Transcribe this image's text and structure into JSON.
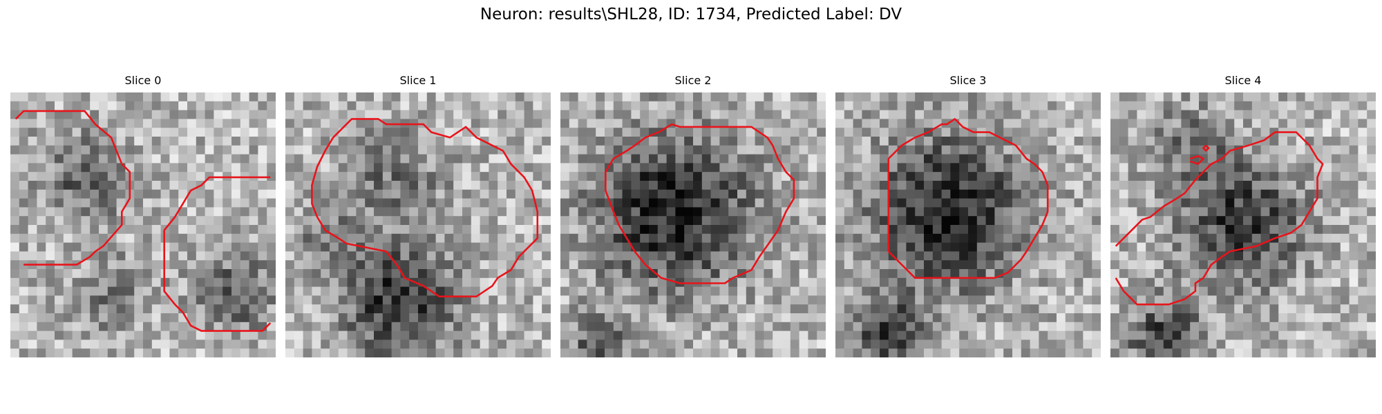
{
  "figure": {
    "title": "Neuron: results\\SHL28, ID: 1734, Predicted Label: DV"
  },
  "contour_color": "#e8141b",
  "panels": [
    {
      "title": "Slice 0",
      "seed": 11,
      "blobs": [
        [
          0.28,
          0.32,
          0.36,
          0.55
        ],
        [
          0.85,
          0.75,
          0.32,
          0.6
        ],
        [
          0.38,
          0.78,
          0.3,
          0.45
        ]
      ],
      "contours": [
        [
          [
            0.02,
            0.1
          ],
          [
            0.05,
            0.07
          ],
          [
            0.28,
            0.07
          ],
          [
            0.32,
            0.12
          ],
          [
            0.38,
            0.17
          ],
          [
            0.42,
            0.27
          ],
          [
            0.45,
            0.3
          ],
          [
            0.45,
            0.4
          ],
          [
            0.42,
            0.45
          ],
          [
            0.42,
            0.5
          ],
          [
            0.35,
            0.58
          ],
          [
            0.32,
            0.6
          ],
          [
            0.3,
            0.62
          ],
          [
            0.25,
            0.65
          ],
          [
            0.05,
            0.65
          ]
        ],
        [
          [
            0.98,
            0.32
          ],
          [
            0.75,
            0.32
          ],
          [
            0.72,
            0.35
          ],
          [
            0.68,
            0.37
          ],
          [
            0.65,
            0.42
          ],
          [
            0.62,
            0.47
          ],
          [
            0.58,
            0.52
          ],
          [
            0.58,
            0.75
          ],
          [
            0.62,
            0.8
          ],
          [
            0.65,
            0.83
          ],
          [
            0.68,
            0.88
          ],
          [
            0.72,
            0.9
          ],
          [
            0.95,
            0.9
          ],
          [
            0.98,
            0.87
          ]
        ]
      ]
    },
    {
      "title": "Slice 1",
      "seed": 23,
      "blobs": [
        [
          0.42,
          0.78,
          0.45,
          0.9
        ],
        [
          0.42,
          0.32,
          0.38,
          0.45
        ],
        [
          0.15,
          0.55,
          0.25,
          0.35
        ]
      ],
      "contours": [
        [
          [
            0.18,
            0.17
          ],
          [
            0.25,
            0.1
          ],
          [
            0.35,
            0.1
          ],
          [
            0.38,
            0.12
          ],
          [
            0.52,
            0.12
          ],
          [
            0.55,
            0.15
          ],
          [
            0.62,
            0.17
          ],
          [
            0.65,
            0.15
          ],
          [
            0.68,
            0.13
          ],
          [
            0.72,
            0.17
          ],
          [
            0.78,
            0.2
          ],
          [
            0.82,
            0.22
          ],
          [
            0.85,
            0.27
          ],
          [
            0.9,
            0.32
          ],
          [
            0.93,
            0.37
          ],
          [
            0.95,
            0.45
          ],
          [
            0.95,
            0.55
          ],
          [
            0.92,
            0.58
          ],
          [
            0.88,
            0.62
          ],
          [
            0.85,
            0.67
          ],
          [
            0.8,
            0.7
          ],
          [
            0.78,
            0.73
          ],
          [
            0.72,
            0.77
          ],
          [
            0.58,
            0.77
          ],
          [
            0.52,
            0.73
          ],
          [
            0.45,
            0.7
          ],
          [
            0.42,
            0.65
          ],
          [
            0.38,
            0.6
          ],
          [
            0.23,
            0.57
          ],
          [
            0.2,
            0.55
          ],
          [
            0.15,
            0.52
          ],
          [
            0.12,
            0.47
          ],
          [
            0.1,
            0.42
          ],
          [
            0.1,
            0.35
          ],
          [
            0.12,
            0.28
          ],
          [
            0.15,
            0.22
          ],
          [
            0.18,
            0.17
          ]
        ]
      ]
    },
    {
      "title": "Slice 2",
      "seed": 37,
      "blobs": [
        [
          0.42,
          0.45,
          0.62,
          1.0
        ],
        [
          0.15,
          0.95,
          0.2,
          0.7
        ]
      ],
      "contours": [
        [
          [
            0.32,
            0.17
          ],
          [
            0.32,
            0.17
          ],
          [
            0.37,
            0.15
          ],
          [
            0.42,
            0.12
          ],
          [
            0.45,
            0.13
          ],
          [
            0.72,
            0.13
          ],
          [
            0.78,
            0.17
          ],
          [
            0.8,
            0.2
          ],
          [
            0.82,
            0.25
          ],
          [
            0.85,
            0.3
          ],
          [
            0.88,
            0.33
          ],
          [
            0.88,
            0.4
          ],
          [
            0.85,
            0.45
          ],
          [
            0.82,
            0.52
          ],
          [
            0.75,
            0.62
          ],
          [
            0.72,
            0.67
          ],
          [
            0.65,
            0.7
          ],
          [
            0.62,
            0.72
          ],
          [
            0.45,
            0.72
          ],
          [
            0.38,
            0.7
          ],
          [
            0.32,
            0.65
          ],
          [
            0.28,
            0.6
          ],
          [
            0.25,
            0.55
          ],
          [
            0.22,
            0.5
          ],
          [
            0.2,
            0.45
          ],
          [
            0.17,
            0.37
          ],
          [
            0.17,
            0.3
          ],
          [
            0.2,
            0.25
          ],
          [
            0.25,
            0.22
          ],
          [
            0.28,
            0.2
          ],
          [
            0.32,
            0.17
          ]
        ]
      ]
    },
    {
      "title": "Slice 3",
      "seed": 53,
      "blobs": [
        [
          0.42,
          0.45,
          0.6,
          1.0
        ],
        [
          0.2,
          0.92,
          0.3,
          0.8
        ]
      ],
      "contours": [
        [
          [
            0.2,
            0.25
          ],
          [
            0.25,
            0.2
          ],
          [
            0.3,
            0.17
          ],
          [
            0.35,
            0.15
          ],
          [
            0.4,
            0.12
          ],
          [
            0.42,
            0.12
          ],
          [
            0.45,
            0.1
          ],
          [
            0.48,
            0.13
          ],
          [
            0.52,
            0.15
          ],
          [
            0.58,
            0.15
          ],
          [
            0.62,
            0.17
          ],
          [
            0.68,
            0.2
          ],
          [
            0.72,
            0.25
          ],
          [
            0.75,
            0.27
          ],
          [
            0.78,
            0.3
          ],
          [
            0.8,
            0.35
          ],
          [
            0.8,
            0.45
          ],
          [
            0.78,
            0.5
          ],
          [
            0.75,
            0.55
          ],
          [
            0.72,
            0.6
          ],
          [
            0.7,
            0.63
          ],
          [
            0.65,
            0.68
          ],
          [
            0.6,
            0.7
          ],
          [
            0.3,
            0.7
          ],
          [
            0.25,
            0.65
          ],
          [
            0.2,
            0.6
          ],
          [
            0.2,
            0.25
          ]
        ]
      ]
    },
    {
      "title": "Slice 4",
      "seed": 71,
      "blobs": [
        [
          0.5,
          0.5,
          0.48,
          0.85
        ],
        [
          0.2,
          0.92,
          0.3,
          0.75
        ],
        [
          0.3,
          0.2,
          0.35,
          0.4
        ]
      ],
      "contours": [
        [
          [
            0.02,
            0.58
          ],
          [
            0.05,
            0.55
          ],
          [
            0.08,
            0.52
          ],
          [
            0.12,
            0.48
          ],
          [
            0.15,
            0.47
          ],
          [
            0.2,
            0.43
          ],
          [
            0.25,
            0.4
          ],
          [
            0.28,
            0.38
          ],
          [
            0.32,
            0.33
          ],
          [
            0.38,
            0.27
          ],
          [
            0.42,
            0.25
          ],
          [
            0.45,
            0.22
          ],
          [
            0.52,
            0.2
          ],
          [
            0.58,
            0.18
          ],
          [
            0.62,
            0.15
          ],
          [
            0.7,
            0.15
          ],
          [
            0.73,
            0.18
          ],
          [
            0.75,
            0.2
          ],
          [
            0.78,
            0.25
          ],
          [
            0.8,
            0.27
          ],
          [
            0.78,
            0.32
          ],
          [
            0.78,
            0.4
          ],
          [
            0.75,
            0.45
          ],
          [
            0.72,
            0.5
          ],
          [
            0.68,
            0.53
          ],
          [
            0.62,
            0.55
          ],
          [
            0.55,
            0.58
          ],
          [
            0.45,
            0.6
          ],
          [
            0.42,
            0.62
          ],
          [
            0.38,
            0.65
          ],
          [
            0.35,
            0.7
          ],
          [
            0.32,
            0.72
          ],
          [
            0.32,
            0.75
          ],
          [
            0.28,
            0.78
          ],
          [
            0.22,
            0.8
          ],
          [
            0.18,
            0.8
          ],
          [
            0.15,
            0.8
          ],
          [
            0.1,
            0.8
          ],
          [
            0.05,
            0.75
          ],
          [
            0.02,
            0.7
          ]
        ],
        [
          [
            0.3,
            0.25
          ],
          [
            0.33,
            0.24
          ],
          [
            0.35,
            0.25
          ],
          [
            0.33,
            0.27
          ],
          [
            0.3,
            0.26
          ]
        ],
        [
          [
            0.36,
            0.2
          ],
          [
            0.37,
            0.21
          ],
          [
            0.36,
            0.22
          ],
          [
            0.35,
            0.21
          ],
          [
            0.36,
            0.2
          ]
        ]
      ]
    }
  ]
}
